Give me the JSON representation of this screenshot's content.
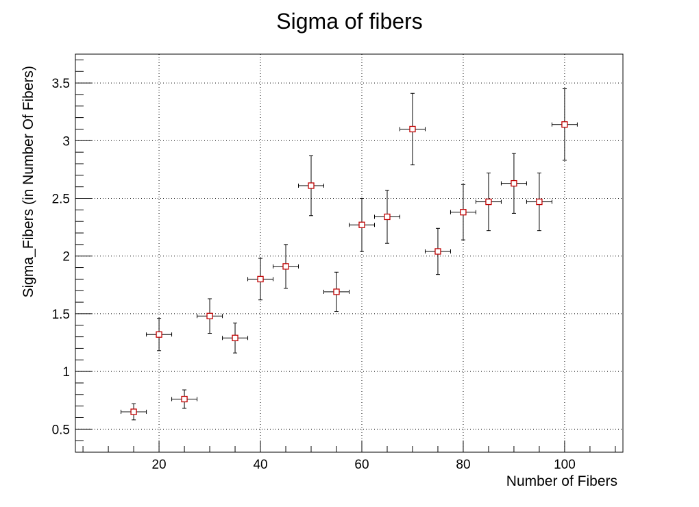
{
  "chart_data": {
    "type": "scatter",
    "title": "Sigma of fibers",
    "xlabel": "Number of Fibers",
    "ylabel": "Sigma_Fibers (in Number Of Fibers)",
    "xlim": [
      3.5,
      111.5
    ],
    "ylim": [
      0.3,
      3.75
    ],
    "x_ticks": [
      20,
      40,
      60,
      80,
      100
    ],
    "y_ticks": [
      0.5,
      1,
      1.5,
      2,
      2.5,
      3,
      3.5
    ],
    "x_tick_labels": [
      "20",
      "40",
      "60",
      "80",
      "100"
    ],
    "y_tick_labels": [
      "0.5",
      "1",
      "1.5",
      "2",
      "2.5",
      "3",
      "3.5"
    ],
    "grid": true,
    "marker": "open-square",
    "marker_color": "#c00000",
    "errorbar_color": "#000000",
    "series": [
      {
        "points": [
          {
            "x": 15,
            "y": 0.65,
            "xerr": 2.5,
            "yerr": 0.07
          },
          {
            "x": 20,
            "y": 1.32,
            "xerr": 2.5,
            "yerr": 0.14
          },
          {
            "x": 25,
            "y": 0.76,
            "xerr": 2.5,
            "yerr": 0.08
          },
          {
            "x": 30,
            "y": 1.48,
            "xerr": 2.5,
            "yerr": 0.15
          },
          {
            "x": 35,
            "y": 1.29,
            "xerr": 2.5,
            "yerr": 0.13
          },
          {
            "x": 40,
            "y": 1.8,
            "xerr": 2.5,
            "yerr": 0.18
          },
          {
            "x": 45,
            "y": 1.91,
            "xerr": 2.5,
            "yerr": 0.19
          },
          {
            "x": 50,
            "y": 2.61,
            "xerr": 2.5,
            "yerr": 0.26
          },
          {
            "x": 55,
            "y": 1.69,
            "xerr": 2.5,
            "yerr": 0.17
          },
          {
            "x": 60,
            "y": 2.27,
            "xerr": 2.5,
            "yerr": 0.23
          },
          {
            "x": 65,
            "y": 2.34,
            "xerr": 2.5,
            "yerr": 0.23
          },
          {
            "x": 70,
            "y": 3.1,
            "xerr": 2.5,
            "yerr": 0.31
          },
          {
            "x": 75,
            "y": 2.04,
            "xerr": 2.5,
            "yerr": 0.2
          },
          {
            "x": 80,
            "y": 2.38,
            "xerr": 2.5,
            "yerr": 0.24
          },
          {
            "x": 85,
            "y": 2.47,
            "xerr": 2.5,
            "yerr": 0.25
          },
          {
            "x": 90,
            "y": 2.63,
            "xerr": 2.5,
            "yerr": 0.26
          },
          {
            "x": 95,
            "y": 2.47,
            "xerr": 2.5,
            "yerr": 0.25
          },
          {
            "x": 100,
            "y": 3.14,
            "xerr": 2.5,
            "yerr": 0.31
          }
        ]
      }
    ]
  }
}
